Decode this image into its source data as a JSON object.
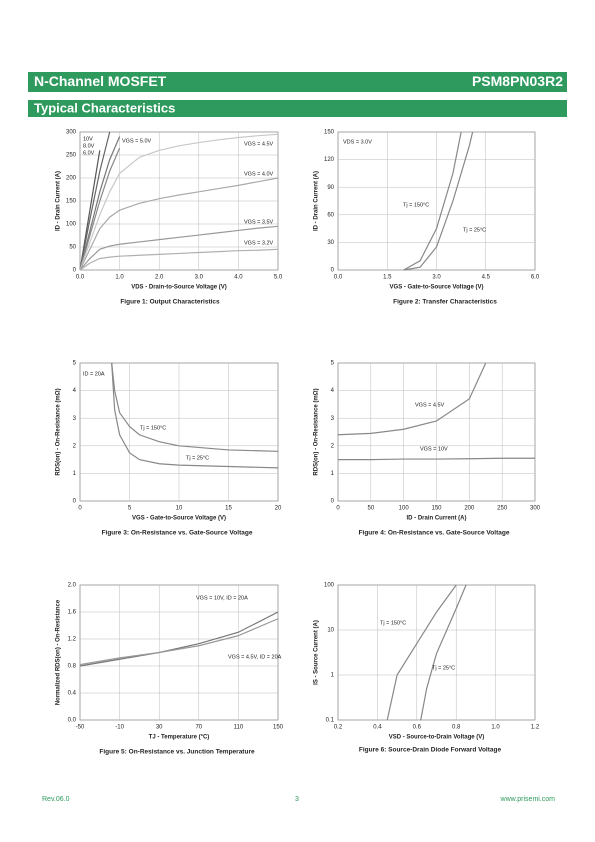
{
  "header": {
    "title": "N-Channel MOSFET",
    "part": "PSM8PN03R2"
  },
  "section": {
    "title": "Typical Characteristics"
  },
  "chart_data": [
    {
      "type": "line",
      "title": "Figure 1:  Output Characteristics",
      "xlabel": "VDS - Drain-to-Source Voltage (V)",
      "ylabel": "ID - Drain Current (A)",
      "xlim": [
        0,
        5
      ],
      "ylim": [
        0,
        300
      ],
      "xticks": [
        {
          "value": 0,
          "label": "0.0"
        },
        {
          "value": 1,
          "label": "1.0"
        },
        {
          "value": 2,
          "label": "2.0"
        },
        {
          "value": 3,
          "label": "3.0"
        },
        {
          "value": 4,
          "label": "4.0"
        },
        {
          "value": 5,
          "label": "5.0"
        }
      ],
      "yticks": [
        0,
        50,
        100,
        150,
        200,
        250,
        300
      ],
      "grid": true,
      "x": [
        0,
        0.25,
        0.5,
        0.75,
        1,
        1.5,
        2,
        2.5,
        3,
        3.5,
        4,
        4.5,
        5
      ],
      "series": [
        {
          "name": "10V",
          "color": "#555555",
          "values": [
            0,
            130,
            260,
            null,
            null,
            null,
            null,
            null,
            null,
            null,
            null,
            null,
            null
          ]
        },
        {
          "name": "8.0V",
          "color": "#666666",
          "values": [
            0,
            110,
            215,
            300,
            null,
            null,
            null,
            null,
            null,
            null,
            null,
            null,
            null
          ]
        },
        {
          "name": "6.0V",
          "color": "#777777",
          "values": [
            0,
            85,
            170,
            240,
            290,
            null,
            null,
            null,
            null,
            null,
            null,
            null,
            null
          ]
        },
        {
          "name": "VGS = 5.0V",
          "color": "#888888",
          "values": [
            0,
            75,
            150,
            215,
            265,
            null,
            null,
            null,
            null,
            null,
            null,
            null,
            null
          ]
        },
        {
          "name": "VGS = 4.5V",
          "color": "#c8c8c8",
          "values": [
            0,
            60,
            120,
            170,
            210,
            245,
            260,
            270,
            277,
            283,
            288,
            292,
            295
          ]
        },
        {
          "name": "VGS = 4.0V",
          "color": "#aaaaaa",
          "values": [
            0,
            45,
            90,
            115,
            130,
            145,
            155,
            163,
            170,
            177,
            184,
            192,
            200
          ]
        },
        {
          "name": "VGS = 3.5V",
          "color": "#999999",
          "values": [
            0,
            25,
            45,
            52,
            56,
            61,
            66,
            71,
            76,
            81,
            86,
            91,
            95
          ]
        },
        {
          "name": "VGS = 3.2V",
          "color": "#b0b0b0",
          "values": [
            0,
            15,
            25,
            28,
            30,
            32,
            34,
            36,
            38,
            40,
            42,
            43,
            45
          ]
        }
      ]
    },
    {
      "type": "line",
      "title": "Figure 2:  Transfer Characteristics",
      "xlabel": "VGS - Gate-to-Source Voltage (V)",
      "ylabel": "ID - Drain Current (A)",
      "xlim": [
        0,
        6
      ],
      "ylim": [
        0,
        150
      ],
      "xticks": [
        {
          "value": 0,
          "label": "0.0"
        },
        1.5,
        {
          "value": 3,
          "label": "3.0"
        },
        4.5,
        {
          "value": 6,
          "label": "6.0"
        }
      ],
      "yticks": [
        0,
        30,
        60,
        90,
        120,
        150
      ],
      "grid": true,
      "annotations": [
        "VDS = 3.0V"
      ],
      "x": [
        2,
        2.5,
        3,
        3.5,
        3.75,
        4,
        4.1
      ],
      "series": [
        {
          "name": "Tj = 150°C",
          "color": "#888888",
          "values": [
            0,
            10,
            45,
            105,
            150,
            null,
            null
          ]
        },
        {
          "name": "Tj = 25°C",
          "color": "#888888",
          "values": [
            0,
            3,
            25,
            75,
            105,
            135,
            150
          ]
        }
      ]
    },
    {
      "type": "line",
      "title": "Figure 3:  On-Resistance vs. Gate-Source Voltage",
      "xlabel": "VGS - Gate-to-Source Voltage (V)",
      "ylabel": "RDS(on) - On-Resistance (mΩ)",
      "xlim": [
        0,
        20
      ],
      "ylim": [
        0,
        5
      ],
      "xticks": [
        0,
        5,
        10,
        15,
        20
      ],
      "yticks": [
        0,
        1,
        2,
        3,
        4,
        5
      ],
      "grid": true,
      "annotations": [
        "ID = 20A"
      ],
      "x": [
        3.2,
        3.5,
        4,
        5,
        6,
        8,
        10,
        15,
        20
      ],
      "series": [
        {
          "name": "Tj = 150°C",
          "color": "#888888",
          "values": [
            5,
            4.0,
            3.2,
            2.7,
            2.4,
            2.15,
            2.0,
            1.85,
            1.8
          ]
        },
        {
          "name": "Tj = 25°C",
          "color": "#888888",
          "values": [
            5,
            3.3,
            2.4,
            1.75,
            1.5,
            1.35,
            1.3,
            1.25,
            1.2
          ]
        }
      ]
    },
    {
      "type": "line",
      "title": "Figure 4:  On-Resistance vs. Gate-Source Voltage",
      "xlabel": "ID - Drain Current (A)",
      "ylabel": "RDS(on) - On-Resistance (mΩ)",
      "xlim": [
        0,
        300
      ],
      "ylim": [
        0,
        5
      ],
      "xticks": [
        0,
        50,
        100,
        150,
        200,
        250,
        300
      ],
      "yticks": [
        0,
        1,
        2,
        3,
        4,
        5
      ],
      "grid": true,
      "x": [
        0,
        50,
        100,
        150,
        200,
        225,
        250,
        300
      ],
      "series": [
        {
          "name": "VGS = 4.5V",
          "color": "#888888",
          "values": [
            2.4,
            2.45,
            2.6,
            2.9,
            3.7,
            5,
            null,
            null
          ]
        },
        {
          "name": "VGS = 10V",
          "color": "#888888",
          "values": [
            1.5,
            1.5,
            1.52,
            1.52,
            1.53,
            1.54,
            1.55,
            1.55
          ]
        }
      ]
    },
    {
      "type": "line",
      "title": "Figure 5:  On-Resistance vs. Junction Temperature",
      "xlabel": "TJ - Temperature (°C)",
      "ylabel": "Normalized RDS(on) - On-Resistance",
      "xlim": [
        -50,
        150
      ],
      "ylim": [
        0,
        2
      ],
      "xticks": [
        -50,
        -10,
        30,
        70,
        110,
        150
      ],
      "yticks": [
        {
          "value": 0,
          "label": "0.0"
        },
        0.4,
        0.8,
        1.2,
        1.6,
        {
          "value": 2,
          "label": "2.0"
        }
      ],
      "grid": true,
      "x": [
        -50,
        -10,
        30,
        70,
        110,
        150
      ],
      "series": [
        {
          "name": "VGS = 10V, ID = 20A",
          "color": "#777777",
          "values": [
            0.8,
            0.9,
            1.0,
            1.13,
            1.3,
            1.6
          ]
        },
        {
          "name": "VGS = 4.5V, ID = 20A",
          "color": "#999999",
          "values": [
            0.82,
            0.92,
            1.0,
            1.1,
            1.25,
            1.5
          ]
        }
      ]
    },
    {
      "type": "line",
      "title": "Figure 6:  Source-Drain Diode Forward Voltage",
      "xlabel": "VSD - Source-to-Drain Voltage (V)",
      "ylabel": "IS - Source Current (A)",
      "xlim": [
        0.2,
        1.2
      ],
      "ylim": [
        0.1,
        100
      ],
      "ylog": true,
      "xticks": [
        0.2,
        0.4,
        0.6,
        0.8,
        {
          "value": 1,
          "label": "1.0"
        },
        1.2
      ],
      "yticks": [
        0.1,
        1,
        10,
        100
      ],
      "grid": true,
      "series": [
        {
          "name": "Tj = 150°C",
          "color": "#888888",
          "x": [
            0.45,
            0.5,
            0.6,
            0.7,
            0.8
          ],
          "values": [
            0.1,
            1,
            5,
            25,
            100
          ]
        },
        {
          "name": "Tj = 25°C",
          "color": "#888888",
          "x": [
            0.62,
            0.65,
            0.7,
            0.8,
            0.85
          ],
          "values": [
            0.1,
            0.5,
            3,
            30,
            100
          ]
        }
      ]
    }
  ],
  "footer": {
    "rev": "Rev.06.0",
    "page": "3",
    "url": "www.prisemi.com"
  }
}
